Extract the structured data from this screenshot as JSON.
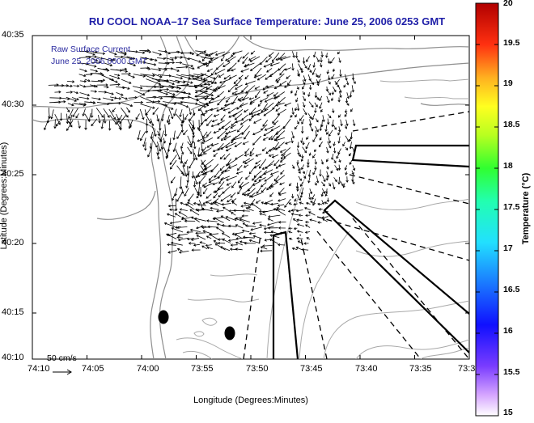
{
  "map": {
    "title": "RU COOL   NOAA–17  Sea Surface Temperature:  June 25, 2006 0253 GMT",
    "overlay_label": "Raw Surface Current",
    "overlay_timestamp": "June 25, 2006 0000 GMT",
    "xlabel": "Longitude (Degrees:Minutes)",
    "ylabel": "Latitude (Degrees:Minutes)",
    "x_ticks": [
      "74:10",
      "74:05",
      "74:00",
      "73:55",
      "73:50",
      "73:45",
      "73:40",
      "73:35",
      "73:3"
    ],
    "y_ticks": [
      "40:35",
      "40:30",
      "40:25",
      "40:20",
      "40:15",
      "40:10"
    ],
    "scale_label": "50 cm/s",
    "colorbar": {
      "label": "Temperature (°C)",
      "ticks": [
        "20",
        "19.5",
        "19",
        "18.5",
        "18",
        "17.5",
        "17",
        "16.5",
        "16",
        "15.5",
        "15"
      ]
    },
    "colors": {
      "title": "#1f1fa8",
      "overlay_text": "#2a2aa0",
      "contour": "#a0a0a0",
      "coast": "#9a9a9a"
    }
  }
}
